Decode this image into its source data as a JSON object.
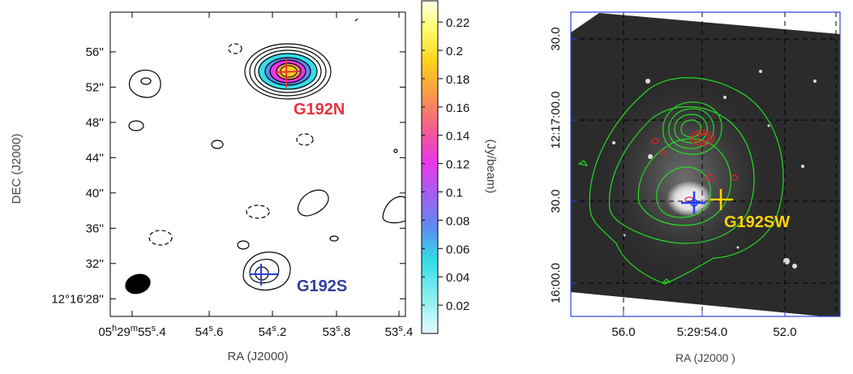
{
  "chart_data": [
    {
      "type": "contour-map",
      "xlabel": "RA (J2000)",
      "ylabel": "DEC (J2000)",
      "x_ticks": [
        "05h29m55s.4",
        "54s.6",
        "54s.2",
        "53s.8",
        "53s.4"
      ],
      "x_ticks_parts": [
        {
          "a": "05",
          "b": "h",
          "c": "29",
          "d": "m",
          "e": "55",
          "f": "s",
          "g": ".4"
        },
        {
          "a": "54",
          "f": "s",
          "g": ".6"
        },
        {
          "a": "54",
          "f": "s",
          "g": ".2"
        },
        {
          "a": "53",
          "f": "s",
          "g": ".8"
        },
        {
          "a": "53",
          "f": "s",
          "g": ".4"
        }
      ],
      "y_ticks": [
        "56''",
        "52''",
        "48''",
        "44''",
        "40''",
        "36''",
        "32''",
        "12°16'28''"
      ],
      "y_tick_values": [
        56,
        52,
        48,
        44,
        40,
        36,
        32,
        28
      ],
      "ylim": [
        26.0,
        60.5
      ],
      "colorbar": {
        "label": "(Jy/beam)",
        "ticks": [
          "0.22",
          "0.2",
          "0.18",
          "0.16",
          "0.14",
          "0.12",
          "0.1",
          "0.08",
          "0.06",
          "0.04",
          "0.02"
        ],
        "tick_values": [
          0.22,
          0.2,
          0.18,
          0.16,
          0.14,
          0.12,
          0.1,
          0.08,
          0.06,
          0.04,
          0.02
        ],
        "range": [
          0.0,
          0.235
        ],
        "colors": [
          "#e6faff",
          "#8ff0ee",
          "#34dce8",
          "#5f8af0",
          "#a35ff0",
          "#ec36e6",
          "#f3608a",
          "#f79a48",
          "#ffd41a",
          "#ffff72",
          "#ffffe8"
        ]
      },
      "sources": [
        {
          "name": "G192N",
          "color": "#e8323c"
        },
        {
          "name": "G192S",
          "color": "#2f3e9e"
        }
      ]
    },
    {
      "type": "image-overlay",
      "xlabel": "RA (J2000 )",
      "x_ticks": [
        "56.0",
        "5:29:54.0",
        "52.0"
      ],
      "y_ticks": [
        "30.0",
        "12:17:00.0",
        "30.0",
        "16:00.0"
      ],
      "sources": [
        {
          "name": "G192SW",
          "color": "#ffd400"
        }
      ],
      "colors": {
        "contour": "#22dd22",
        "red_contour": "#e82020",
        "marker_blue": "#1e3cff",
        "marker_yellow": "#ffd400"
      }
    }
  ]
}
